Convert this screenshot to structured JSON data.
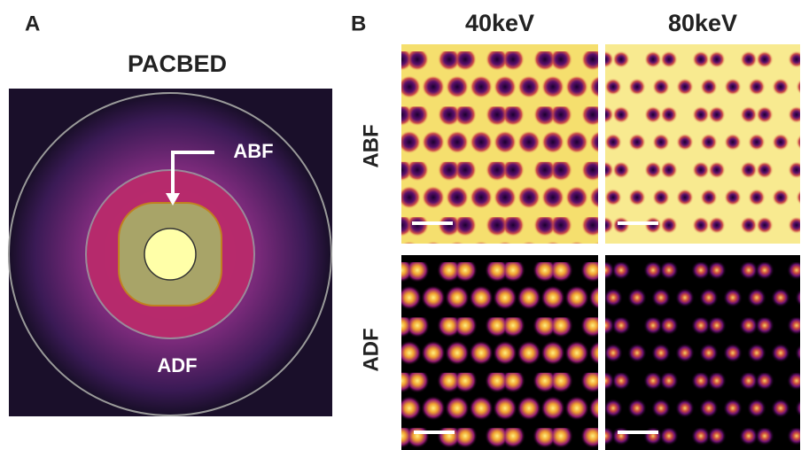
{
  "panel_a": {
    "label": "A",
    "title": "PACBED",
    "annotations": [
      "ABF",
      "ADF"
    ]
  },
  "panel_b": {
    "label": "B",
    "columns": [
      "40keV",
      "80keV"
    ],
    "rows": [
      "ABF",
      "ADF"
    ]
  }
}
